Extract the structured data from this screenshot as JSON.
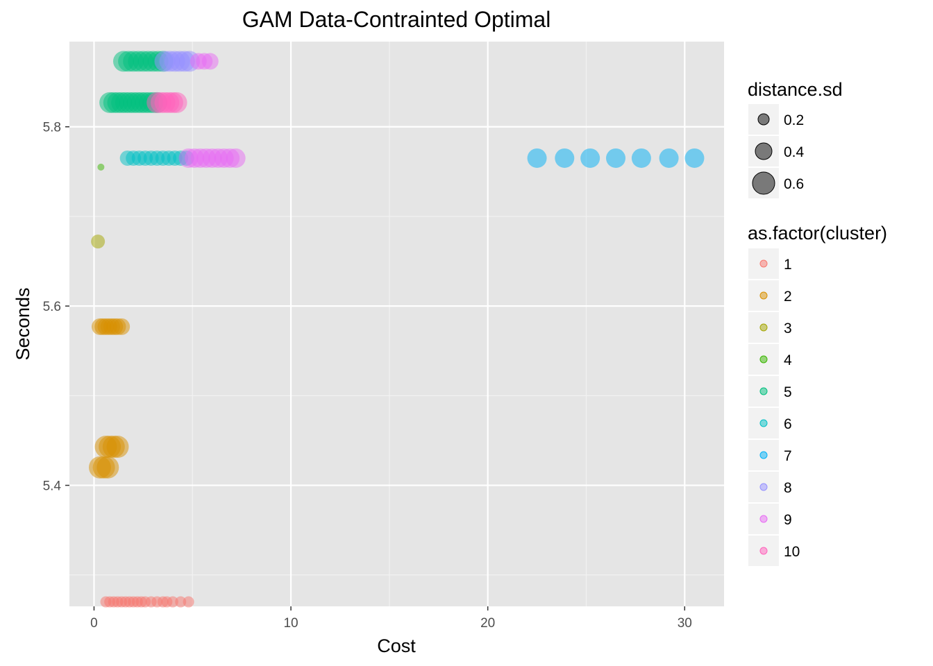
{
  "chart_data": {
    "type": "scatter",
    "title": "GAM Data-Contrainted Optimal",
    "xlabel": "Cost",
    "ylabel": "Seconds",
    "xlim": [
      -1.25,
      32
    ],
    "ylim": [
      5.265,
      5.895
    ],
    "x_ticks": [
      0,
      10,
      20,
      30
    ],
    "x_tick_labels": [
      "0",
      "10",
      "20",
      "30"
    ],
    "x_minor": [
      5,
      15,
      25
    ],
    "y_ticks": [
      5.4,
      5.6,
      5.8
    ],
    "y_tick_labels": [
      "5.4",
      "5.6",
      "5.8"
    ],
    "y_minor": [
      5.3,
      5.5,
      5.7
    ],
    "grid": true,
    "legend_position": "right",
    "point_alpha": 0.5,
    "size_legend": {
      "title": "distance.sd",
      "entries": [
        {
          "label": "0.2",
          "value": 0.2
        },
        {
          "label": "0.4",
          "value": 0.4
        },
        {
          "label": "0.6",
          "value": 0.6
        }
      ]
    },
    "color_legend": {
      "title": "as.factor(cluster)",
      "entries": [
        {
          "label": "1",
          "color": "#F8766D"
        },
        {
          "label": "2",
          "color": "#D89000"
        },
        {
          "label": "3",
          "color": "#A3A500"
        },
        {
          "label": "4",
          "color": "#39B600"
        },
        {
          "label": "5",
          "color": "#00BF7D"
        },
        {
          "label": "6",
          "color": "#00BFC4"
        },
        {
          "label": "7",
          "color": "#00B0F6"
        },
        {
          "label": "8",
          "color": "#9590FF"
        },
        {
          "label": "9",
          "color": "#E76BF3"
        },
        {
          "label": "10",
          "color": "#FF62BC"
        }
      ]
    },
    "series": [
      {
        "cluster": "1",
        "y": 5.27,
        "size": 0.2,
        "x": [
          0.6,
          0.8,
          1.0,
          1.2,
          1.4,
          1.6,
          1.8,
          2.0,
          2.2,
          2.4,
          2.6,
          2.9,
          3.2,
          3.5,
          3.7,
          4.0,
          4.4,
          4.8
        ]
      },
      {
        "cluster": "2",
        "y": 5.577,
        "size": 0.4,
        "x": [
          0.3,
          0.45,
          0.6,
          0.75,
          0.9,
          1.05,
          1.2,
          1.4
        ]
      },
      {
        "cluster": "2",
        "y": 5.443,
        "size": 0.6,
        "x": [
          0.6,
          0.8,
          1.0,
          1.2
        ]
      },
      {
        "cluster": "2",
        "y": 5.42,
        "size": 0.6,
        "x": [
          0.3,
          0.5,
          0.7
        ]
      },
      {
        "cluster": "3",
        "y": 5.672,
        "size": 0.3,
        "x": [
          0.2
        ]
      },
      {
        "cluster": "4",
        "y": 5.755,
        "size": 0.05,
        "x": [
          0.35
        ]
      },
      {
        "cluster": "5",
        "y": 5.873,
        "size": 0.55,
        "x": [
          1.5,
          1.75,
          2.0,
          2.25,
          2.5,
          2.75,
          3.0,
          3.25,
          3.5
        ]
      },
      {
        "cluster": "5",
        "y": 5.827,
        "size": 0.55,
        "x": [
          0.8,
          1.0,
          1.2,
          1.4,
          1.6,
          1.8,
          2.0,
          2.2,
          2.4,
          2.6,
          2.8,
          3.0,
          3.2
        ]
      },
      {
        "cluster": "6",
        "y": 5.765,
        "size": 0.35,
        "x": [
          1.7,
          2.0,
          2.3,
          2.6,
          2.9,
          3.2,
          3.5,
          3.8,
          4.1,
          4.4,
          4.7
        ]
      },
      {
        "cluster": "7",
        "y": 5.765,
        "size": 0.5,
        "x": [
          22.5,
          23.9,
          25.2,
          26.5,
          27.8,
          29.2,
          30.5
        ]
      },
      {
        "cluster": "8",
        "y": 5.873,
        "size": 0.55,
        "x": [
          3.6,
          3.85,
          4.1,
          4.35,
          4.6,
          4.85
        ]
      },
      {
        "cluster": "9",
        "y": 5.765,
        "size": 0.5,
        "x": [
          4.8,
          5.1,
          5.4,
          5.7,
          6.0,
          6.3,
          6.6,
          6.9,
          7.2
        ]
      },
      {
        "cluster": "9",
        "y": 5.873,
        "size": 0.4,
        "x": [
          5.3,
          5.6,
          5.9
        ]
      },
      {
        "cluster": "10",
        "y": 5.827,
        "size": 0.55,
        "x": [
          3.2,
          3.4,
          3.6,
          3.8,
          4.0,
          4.2
        ]
      }
    ]
  }
}
